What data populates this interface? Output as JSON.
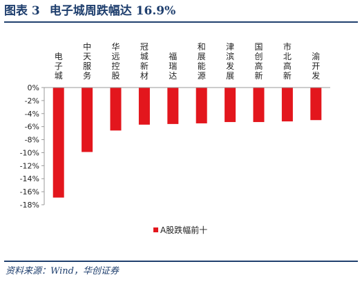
{
  "header": {
    "figure_label": "图表 3",
    "title": "电子城周跌幅达 16.9%"
  },
  "source": "资料来源：Wind，华创证券",
  "colors": {
    "bar": "#e3161d",
    "accent": "#1f3f6e"
  },
  "chart_data": {
    "type": "bar",
    "categories": [
      "电子城",
      "中天服务",
      "华远控股",
      "冠城新材",
      "福瑞达",
      "和展能源",
      "津滨发展",
      "国创高新",
      "市北高新",
      "渝开发"
    ],
    "series": [
      {
        "name": "A股跌幅前十",
        "values": [
          -16.9,
          -9.9,
          -6.6,
          -5.7,
          -5.6,
          -5.5,
          -5.3,
          -5.3,
          -5.2,
          -5.0
        ]
      }
    ],
    "ylim": [
      -18,
      0
    ],
    "yticks": [
      "0%",
      "-2%",
      "-4%",
      "-6%",
      "-8%",
      "-10%",
      "-12%",
      "-14%",
      "-16%",
      "-18%"
    ],
    "xlabel": "",
    "ylabel": "",
    "legend_position": "bottom"
  }
}
